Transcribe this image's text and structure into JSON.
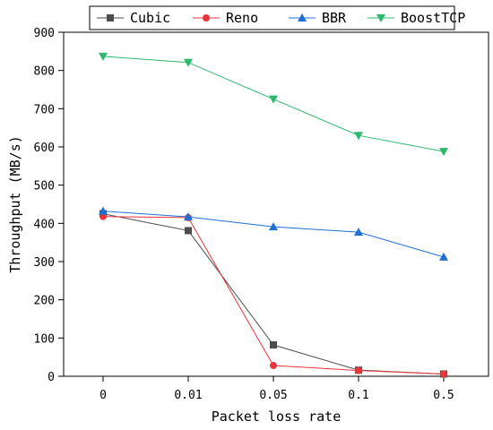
{
  "chart_data": {
    "type": "line",
    "categories": [
      "0",
      "0.01",
      "0.05",
      "0.1",
      "0.5"
    ],
    "series": [
      {
        "name": "Cubic",
        "values": [
          425,
          381,
          82,
          16,
          6
        ],
        "color": "#4d4d4d",
        "marker": "square"
      },
      {
        "name": "Reno",
        "values": [
          418,
          415,
          28,
          15,
          6
        ],
        "color": "#e8353a",
        "marker": "circle"
      },
      {
        "name": "BBR",
        "values": [
          432,
          417,
          391,
          377,
          312
        ],
        "color": "#1f6fd6",
        "marker": "triangle-up"
      },
      {
        "name": "BoostTCP",
        "values": [
          837,
          821,
          725,
          630,
          588
        ],
        "color": "#2db86d",
        "marker": "triangle-down"
      }
    ],
    "xlabel": "Packet loss rate",
    "ylabel": "Throughput (MB/s)",
    "ylim": [
      0,
      900
    ],
    "yticks": [
      0,
      100,
      200,
      300,
      400,
      500,
      600,
      700,
      800,
      900
    ],
    "grid": false,
    "legend_position": "top"
  }
}
